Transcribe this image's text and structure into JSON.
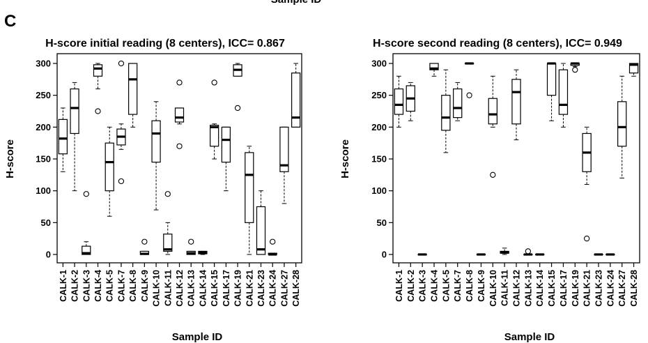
{
  "figure": {
    "top_label": "Sample ID",
    "panel_letter": "C"
  },
  "chart_data": [
    {
      "type": "boxplot",
      "title": "H-score initial reading (8 centers), ICC= 0.867",
      "xlabel": "Sample ID",
      "ylabel": "H-score",
      "ylim": [
        0,
        300
      ],
      "yticks": [
        0,
        50,
        100,
        150,
        200,
        250,
        300
      ],
      "grid": false,
      "categories": [
        "CALK-1",
        "CALK-2",
        "CALK-3",
        "CALK-4",
        "CALK-5",
        "CALK-7",
        "CALK-8",
        "CALK-9",
        "CALK-10",
        "CALK-11",
        "CALK-12",
        "CALK-13",
        "CALK-14",
        "CALK-15",
        "CALK-17",
        "CALK-19",
        "CALK-21",
        "CALK-23",
        "CALK-24",
        "CALK-27",
        "CALK-28"
      ],
      "boxes": [
        {
          "min": 130,
          "q1": 158,
          "median": 182,
          "q3": 212,
          "max": 230,
          "outliers": []
        },
        {
          "min": 100,
          "q1": 190,
          "median": 230,
          "q3": 260,
          "max": 270,
          "outliers": []
        },
        {
          "min": 0,
          "q1": 0,
          "median": 2,
          "q3": 13,
          "max": 20,
          "outliers": [
            95
          ]
        },
        {
          "min": 260,
          "q1": 280,
          "median": 292,
          "q3": 298,
          "max": 300,
          "outliers": [
            225
          ]
        },
        {
          "min": 60,
          "q1": 100,
          "median": 145,
          "q3": 175,
          "max": 200,
          "outliers": []
        },
        {
          "min": 165,
          "q1": 172,
          "median": 185,
          "q3": 197,
          "max": 205,
          "outliers": [
            300,
            115
          ]
        },
        {
          "min": 200,
          "q1": 220,
          "median": 275,
          "q3": 300,
          "max": 300,
          "outliers": []
        },
        {
          "min": 0,
          "q1": 0,
          "median": 1,
          "q3": 5,
          "max": 5,
          "outliers": [
            20
          ]
        },
        {
          "min": 70,
          "q1": 145,
          "median": 190,
          "q3": 210,
          "max": 240,
          "outliers": []
        },
        {
          "min": 0,
          "q1": 5,
          "median": 8,
          "q3": 32,
          "max": 50,
          "outliers": [
            95
          ]
        },
        {
          "min": 205,
          "q1": 208,
          "median": 215,
          "q3": 230,
          "max": 230,
          "outliers": [
            270,
            170
          ]
        },
        {
          "min": 0,
          "q1": 0,
          "median": 2,
          "q3": 5,
          "max": 5,
          "outliers": [
            20
          ]
        },
        {
          "min": 0,
          "q1": 1,
          "median": 3,
          "q3": 5,
          "max": 5,
          "outliers": []
        },
        {
          "min": 150,
          "q1": 170,
          "median": 200,
          "q3": 203,
          "max": 205,
          "outliers": [
            270
          ]
        },
        {
          "min": 100,
          "q1": 145,
          "median": 180,
          "q3": 200,
          "max": 200,
          "outliers": []
        },
        {
          "min": 280,
          "q1": 280,
          "median": 290,
          "q3": 298,
          "max": 300,
          "outliers": [
            230
          ]
        },
        {
          "min": 0,
          "q1": 50,
          "median": 125,
          "q3": 160,
          "max": 170,
          "outliers": []
        },
        {
          "min": 0,
          "q1": 0,
          "median": 8,
          "q3": 75,
          "max": 100,
          "outliers": []
        },
        {
          "min": 0,
          "q1": 0,
          "median": 0,
          "q3": 2,
          "max": 2,
          "outliers": [
            20
          ]
        },
        {
          "min": 80,
          "q1": 130,
          "median": 140,
          "q3": 200,
          "max": 200,
          "outliers": []
        },
        {
          "min": 200,
          "q1": 200,
          "median": 215,
          "q3": 285,
          "max": 300,
          "outliers": []
        }
      ]
    },
    {
      "type": "boxplot",
      "title": "H-score second reading (8 centers), ICC= 0.949",
      "xlabel": "Sample ID",
      "ylabel": "H-score",
      "ylim": [
        0,
        300
      ],
      "yticks": [
        0,
        50,
        100,
        150,
        200,
        250,
        300
      ],
      "grid": false,
      "categories": [
        "CALK-1",
        "CALK-2",
        "CALK-3",
        "CALK-4",
        "CALK-5",
        "CALK-7",
        "CALK-8",
        "CALK-9",
        "CALK-10",
        "CALK-11",
        "CALK-12",
        "CALK-13",
        "CALK-14",
        "CALK-15",
        "CALK-17",
        "CALK-19",
        "CALK-21",
        "CALK-23",
        "CALK-24",
        "CALK-27",
        "CALK-28"
      ],
      "boxes": [
        {
          "min": 200,
          "q1": 220,
          "median": 235,
          "q3": 260,
          "max": 280,
          "outliers": []
        },
        {
          "min": 210,
          "q1": 225,
          "median": 245,
          "q3": 265,
          "max": 270,
          "outliers": []
        },
        {
          "min": 0,
          "q1": 0,
          "median": 0,
          "q3": 0,
          "max": 0,
          "outliers": []
        },
        {
          "min": 280,
          "q1": 290,
          "median": 292,
          "q3": 300,
          "max": 300,
          "outliers": []
        },
        {
          "min": 160,
          "q1": 195,
          "median": 215,
          "q3": 250,
          "max": 290,
          "outliers": []
        },
        {
          "min": 210,
          "q1": 215,
          "median": 230,
          "q3": 260,
          "max": 270,
          "outliers": []
        },
        {
          "min": 300,
          "q1": 300,
          "median": 300,
          "q3": 300,
          "max": 300,
          "outliers": [
            250
          ]
        },
        {
          "min": 0,
          "q1": 0,
          "median": 0,
          "q3": 0,
          "max": 0,
          "outliers": []
        },
        {
          "min": 200,
          "q1": 205,
          "median": 220,
          "q3": 245,
          "max": 280,
          "outliers": [
            125
          ]
        },
        {
          "min": 0,
          "q1": 2,
          "median": 3,
          "q3": 5,
          "max": 10,
          "outliers": []
        },
        {
          "min": 180,
          "q1": 205,
          "median": 255,
          "q3": 275,
          "max": 290,
          "outliers": []
        },
        {
          "min": 0,
          "q1": 0,
          "median": 0,
          "q3": 0,
          "max": 0,
          "outliers": [
            5
          ]
        },
        {
          "min": 0,
          "q1": 0,
          "median": 0,
          "q3": 0,
          "max": 0,
          "outliers": []
        },
        {
          "min": 210,
          "q1": 250,
          "median": 300,
          "q3": 300,
          "max": 300,
          "outliers": []
        },
        {
          "min": 200,
          "q1": 220,
          "median": 235,
          "q3": 290,
          "max": 300,
          "outliers": []
        },
        {
          "min": 295,
          "q1": 297,
          "median": 300,
          "q3": 300,
          "max": 300,
          "outliers": [
            290
          ]
        },
        {
          "min": 110,
          "q1": 130,
          "median": 160,
          "q3": 190,
          "max": 200,
          "outliers": [
            25
          ]
        },
        {
          "min": 0,
          "q1": 0,
          "median": 0,
          "q3": 0,
          "max": 0,
          "outliers": []
        },
        {
          "min": 0,
          "q1": 0,
          "median": 0,
          "q3": 0,
          "max": 0,
          "outliers": []
        },
        {
          "min": 120,
          "q1": 170,
          "median": 200,
          "q3": 240,
          "max": 280,
          "outliers": []
        },
        {
          "min": 280,
          "q1": 285,
          "median": 298,
          "q3": 300,
          "max": 300,
          "outliers": []
        }
      ]
    }
  ]
}
